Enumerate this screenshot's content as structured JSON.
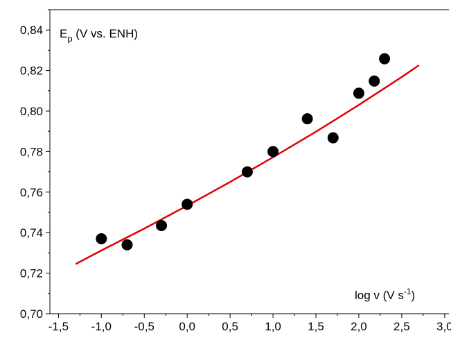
{
  "chart_data": {
    "type": "scatter",
    "ylabel": {
      "main": "E",
      "sub": "p",
      "rest": " (V vs. ENH)"
    },
    "xlabel": {
      "main": "log v (V s",
      "sup": "-1",
      "rest": ")"
    },
    "xlim": [
      -1.6,
      3.05
    ],
    "ylim": [
      0.7,
      0.85
    ],
    "xticks": [
      -1.5,
      -1.0,
      -0.5,
      0.0,
      0.5,
      1.0,
      1.5,
      2.0,
      2.5,
      3.0
    ],
    "xtick_labels": [
      "-1,5",
      "-1,0",
      "-0,5",
      "0,0",
      "0,5",
      "1,0",
      "1,5",
      "2,0",
      "2,5",
      "3,0"
    ],
    "yticks": [
      0.7,
      0.72,
      0.74,
      0.76,
      0.78,
      0.8,
      0.82,
      0.84
    ],
    "ytick_labels": [
      "0,70",
      "0,72",
      "0,74",
      "0,76",
      "0,78",
      "0,80",
      "0,82",
      "0,84"
    ],
    "grid": false,
    "series": [
      {
        "kind": "scatter",
        "color": "#000000",
        "x": [
          -1.0,
          -0.7,
          -0.3,
          0.0,
          0.7,
          1.0,
          1.4,
          1.7,
          2.0,
          2.18,
          2.3
        ],
        "y": [
          0.737,
          0.734,
          0.7435,
          0.754,
          0.77,
          0.78,
          0.7962,
          0.7868,
          0.8088,
          0.8148,
          0.8258
        ]
      },
      {
        "kind": "line",
        "color": "#e00000",
        "x": [
          -1.3,
          -1.0,
          -0.5,
          0.0,
          0.5,
          1.0,
          1.5,
          2.0,
          2.5,
          2.7
        ],
        "y": [
          0.7245,
          0.7312,
          0.742,
          0.7533,
          0.765,
          0.7772,
          0.7898,
          0.803,
          0.8168,
          0.8226
        ]
      }
    ]
  }
}
